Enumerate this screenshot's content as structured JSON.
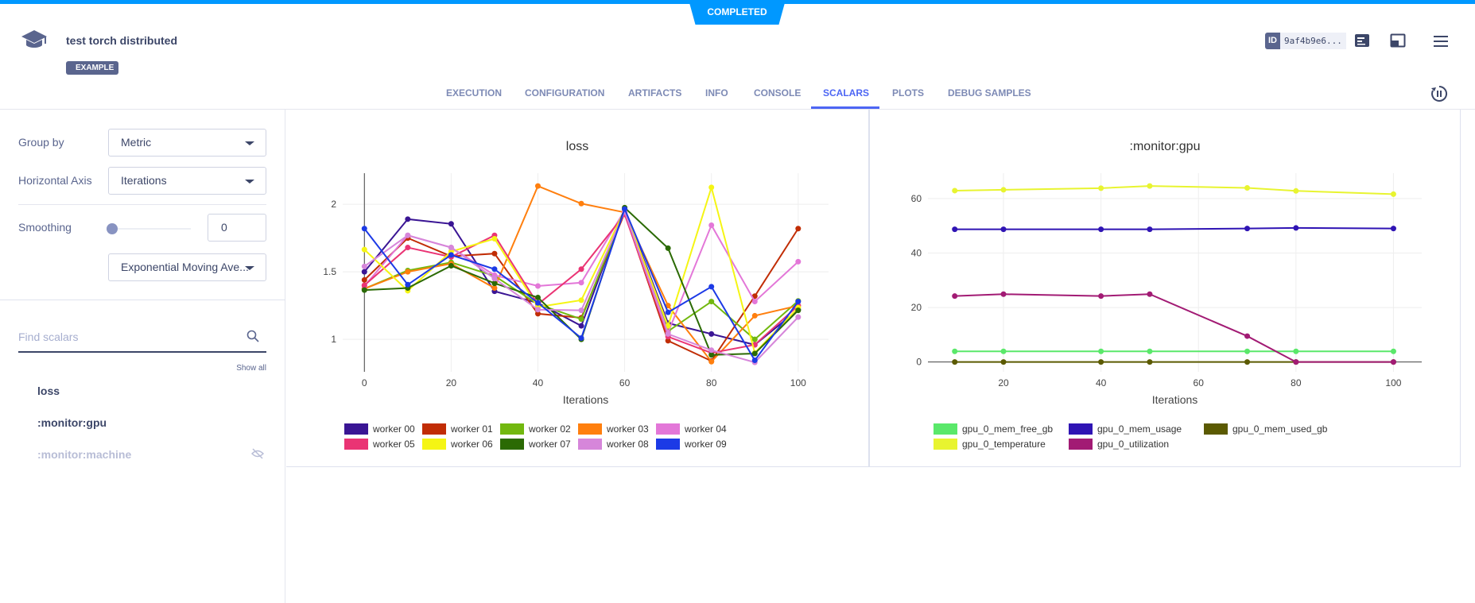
{
  "header": {
    "status": "COMPLETED",
    "title": "test torch distributed",
    "badge": "EXAMPLE",
    "id_label": "ID",
    "id_value": "9af4b9e6...",
    "brand_color": "#0098ff",
    "accent_color": "#4d66f4"
  },
  "tabs": [
    {
      "label": "EXECUTION"
    },
    {
      "label": "CONFIGURATION"
    },
    {
      "label": "ARTIFACTS"
    },
    {
      "label": "INFO"
    },
    {
      "label": "CONSOLE"
    },
    {
      "label": "SCALARS",
      "active": true
    },
    {
      "label": "PLOTS"
    },
    {
      "label": "DEBUG SAMPLES"
    }
  ],
  "sidebar": {
    "group_by_label": "Group by",
    "group_by_value": "Metric",
    "haxis_label": "Horizontal Axis",
    "haxis_value": "Iterations",
    "smoothing_label": "Smoothing",
    "smoothing_value": "0",
    "smoothing_level": 0,
    "smoothing_method": "Exponential Moving Ave...",
    "search_placeholder": "Find scalars",
    "show_all": "Show all",
    "scalars": [
      {
        "label": "loss",
        "hidden": false
      },
      {
        "label": ":monitor:gpu",
        "hidden": false
      },
      {
        "label": ":monitor:machine",
        "hidden": true
      }
    ]
  },
  "chart_data": [
    {
      "type": "line",
      "title": "loss",
      "xlabel": "Iterations",
      "ylabel": "",
      "xlim": [
        -5,
        107
      ],
      "ylim": [
        0.76,
        2.23
      ],
      "xticks": [
        0,
        20,
        40,
        60,
        80,
        100
      ],
      "yticks": [
        1,
        1.5,
        2
      ],
      "ytick_labels": [
        "1",
        "1.5",
        "2"
      ],
      "grid": true,
      "legend": "bottom",
      "x": [
        0,
        10,
        20,
        30,
        40,
        50,
        60,
        70,
        80,
        90,
        100
      ],
      "series": [
        {
          "name": "worker 00",
          "color": "#3a1594",
          "values": [
            1.5,
            1.89,
            1.855,
            1.356,
            1.27,
            1.1,
            1.965,
            1.12,
            1.04,
            0.96,
            1.22
          ]
        },
        {
          "name": "worker 01",
          "color": "#c12d05",
          "values": [
            1.44,
            1.75,
            1.615,
            1.635,
            1.19,
            1.16,
            1.935,
            0.99,
            0.84,
            1.32,
            1.82
          ]
        },
        {
          "name": "worker 02",
          "color": "#72b80f",
          "values": [
            1.375,
            1.51,
            1.57,
            1.47,
            1.26,
            1.15,
            1.955,
            1.06,
            1.28,
            1.0,
            1.285
          ]
        },
        {
          "name": "worker 03",
          "color": "#ff7f0e",
          "values": [
            1.375,
            1.5,
            1.56,
            1.38,
            2.135,
            2.005,
            1.94,
            1.25,
            0.835,
            1.175,
            1.25
          ]
        },
        {
          "name": "worker 04",
          "color": "#e377d8",
          "values": [
            1.395,
            1.77,
            1.68,
            1.475,
            1.395,
            1.42,
            1.955,
            1.05,
            1.845,
            1.28,
            1.575
          ]
        },
        {
          "name": "worker 05",
          "color": "#ea3474",
          "values": [
            1.4,
            1.68,
            1.61,
            1.77,
            1.26,
            1.52,
            1.925,
            1.02,
            0.9,
            0.96,
            1.25
          ]
        },
        {
          "name": "worker 06",
          "color": "#f5f514",
          "values": [
            1.665,
            1.36,
            1.65,
            1.745,
            1.24,
            1.29,
            1.955,
            1.1,
            2.125,
            0.9,
            1.235
          ]
        },
        {
          "name": "worker 07",
          "color": "#2b6a04",
          "values": [
            1.365,
            1.38,
            1.545,
            1.415,
            1.31,
            1.0,
            1.975,
            1.675,
            0.885,
            0.895,
            1.215
          ]
        },
        {
          "name": "worker 08",
          "color": "#d686da",
          "values": [
            1.54,
            1.77,
            1.68,
            1.45,
            1.22,
            1.215,
            1.945,
            1.04,
            0.92,
            0.83,
            1.165
          ]
        },
        {
          "name": "worker 09",
          "color": "#1c3ae6",
          "values": [
            1.82,
            1.405,
            1.625,
            1.52,
            1.27,
            1.01,
            1.965,
            1.2,
            1.39,
            0.845,
            1.28
          ]
        }
      ]
    },
    {
      "type": "line",
      "title": ":monitor:gpu",
      "xlabel": "Iterations",
      "ylabel": "",
      "xlim": [
        4.5,
        105.8
      ],
      "ylim": [
        -3.6,
        69.3
      ],
      "xticks": [
        20,
        40,
        60,
        80,
        100
      ],
      "yticks": [
        0,
        20,
        40,
        60
      ],
      "ytick_labels": [
        "0",
        "20",
        "40",
        "60"
      ],
      "grid": true,
      "legend": "bottom",
      "x": [
        10,
        20,
        40,
        50,
        70,
        80,
        100
      ],
      "series": [
        {
          "name": "gpu_0_mem_free_gb",
          "color": "#5ae86a",
          "values": [
            3.9,
            3.9,
            3.9,
            3.9,
            3.9,
            3.9,
            3.9
          ]
        },
        {
          "name": "gpu_0_mem_usage",
          "color": "#2f14b4",
          "values": [
            48.7,
            48.7,
            48.7,
            48.7,
            49.0,
            49.2,
            49.0
          ]
        },
        {
          "name": "gpu_0_mem_used_gb",
          "color": "#5b5a02",
          "values": [
            0,
            0,
            0,
            0,
            0,
            0,
            0
          ]
        },
        {
          "name": "gpu_0_temperature",
          "color": "#e8f430",
          "values": [
            62.9,
            63.2,
            63.8,
            64.6,
            63.9,
            62.8,
            61.6
          ]
        },
        {
          "name": "gpu_0_utilization",
          "color": "#a21b74",
          "values": [
            24.2,
            24.9,
            24.2,
            24.9,
            9.5,
            0,
            0
          ]
        }
      ]
    }
  ]
}
